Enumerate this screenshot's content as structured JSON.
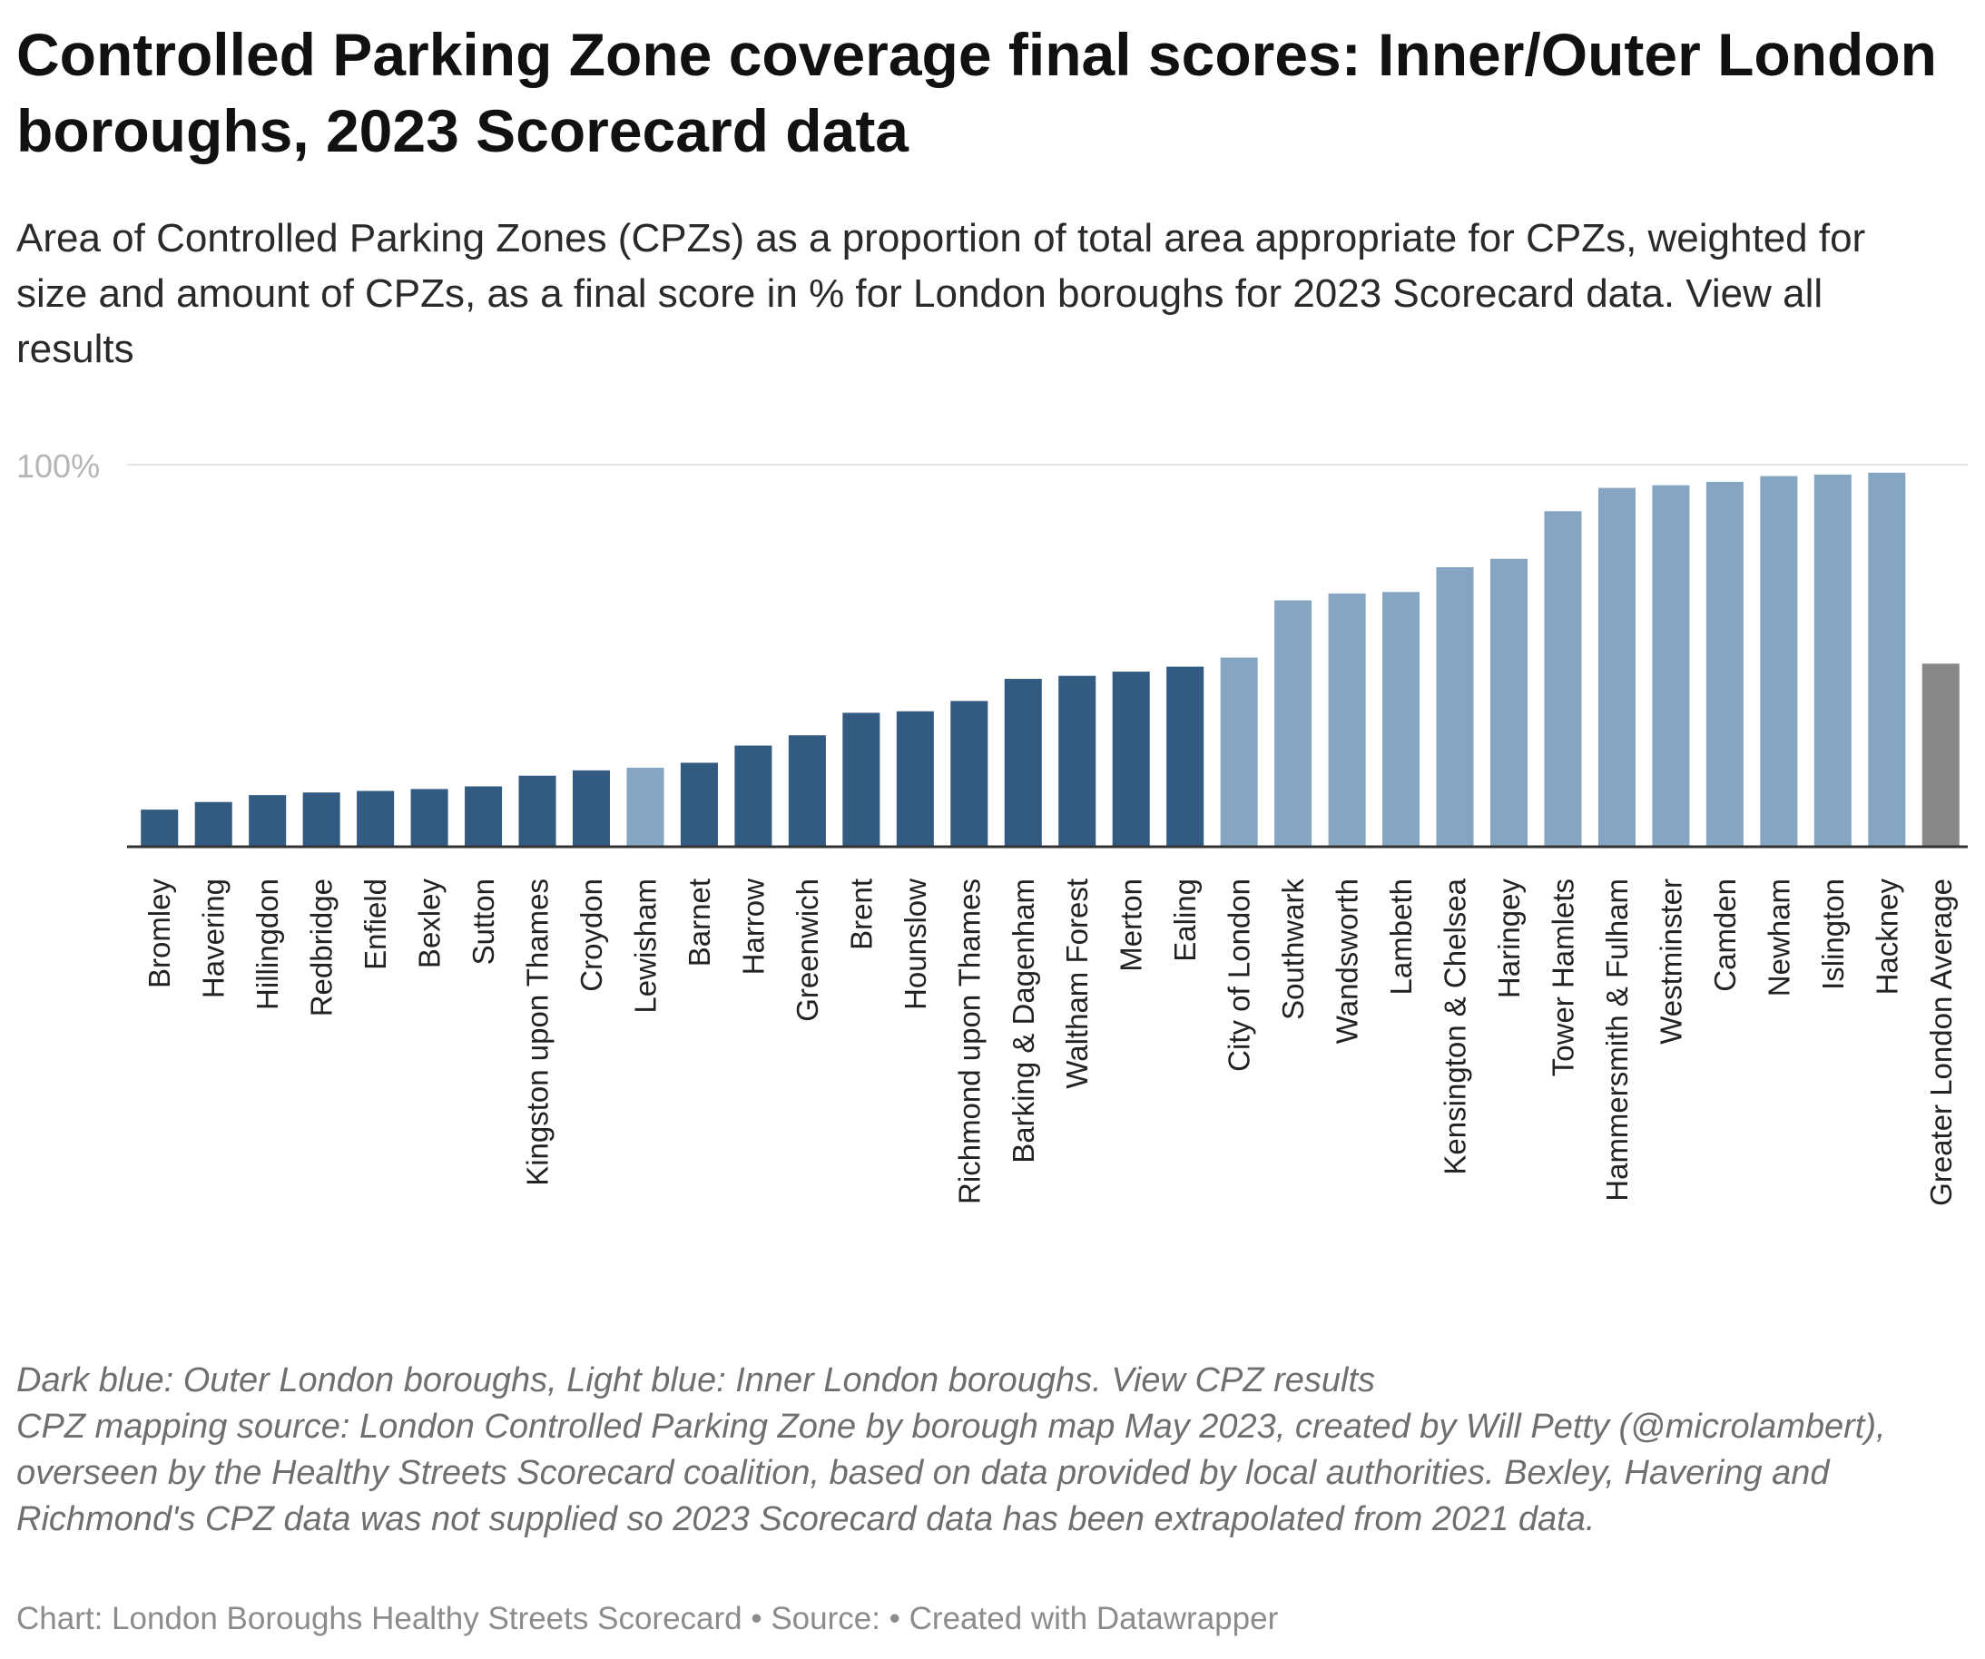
{
  "title": "Controlled Parking Zone coverage final scores: Inner/Outer London boroughs, 2023 Scorecard data",
  "subtitle": "Area of Controlled Parking Zones (CPZs) as a proportion of total area appropriate for CPZs, weighted for size and amount of CPZs, as a final score in % for London boroughs for 2023 Scorecard data.",
  "subtitle_link": "View all results",
  "notes": {
    "line1": "Dark blue: Outer London boroughs, Light blue: Inner London boroughs.",
    "line1_link": "View CPZ results",
    "line2": "CPZ mapping source: London Controlled Parking Zone by borough map May 2023, created by Will Petty (@microlambert), overseen by the Healthy Streets Scorecard coalition, based on data provided by local authorities. Bexley, Havering and Richmond's CPZ data was not supplied so 2023 Scorecard data has been extrapolated from 2021 data."
  },
  "footer": "Chart: London Boroughs Healthy Streets Scorecard • Source: • Created with Datawrapper",
  "colors": {
    "outer": "#335a80",
    "inner": "#86a5c2",
    "average": "#888888",
    "grid": "#e3e3e3",
    "tick": "#b5b5b5",
    "baseline": "#333333"
  },
  "chart_data": {
    "type": "bar",
    "ylim": [
      0,
      100
    ],
    "y_ticks": [
      {
        "value": 100,
        "label": "100%"
      }
    ],
    "grid": true,
    "categories": [
      "Bromley",
      "Havering",
      "Hillingdon",
      "Redbridge",
      "Enfield",
      "Bexley",
      "Sutton",
      "Kingston upon Thames",
      "Croydon",
      "Lewisham",
      "Barnet",
      "Harrow",
      "Greenwich",
      "Brent",
      "Hounslow",
      "Richmond upon Thames",
      "Barking & Dagenham",
      "Waltham Forest",
      "Merton",
      "Ealing",
      "City of London",
      "Southwark",
      "Wandsworth",
      "Lambeth",
      "Kensington & Chelsea",
      "Haringey",
      "Tower Hamlets",
      "Hammersmith & Fulham",
      "Westminster",
      "Camden",
      "Newham",
      "Islington",
      "Hackney",
      "Greater London Average"
    ],
    "values": [
      9.5,
      11.5,
      13.3,
      14.0,
      14.4,
      14.9,
      15.6,
      18.4,
      19.8,
      20.5,
      21.8,
      26.3,
      29.0,
      34.9,
      35.3,
      38.0,
      43.8,
      44.6,
      45.7,
      47.0,
      49.4,
      64.4,
      66.2,
      66.6,
      73.1,
      75.3,
      87.8,
      93.9,
      94.6,
      95.5,
      97.0,
      97.4,
      97.9,
      47.8
    ],
    "groups": [
      "outer",
      "outer",
      "outer",
      "outer",
      "outer",
      "outer",
      "outer",
      "outer",
      "outer",
      "inner",
      "outer",
      "outer",
      "outer",
      "outer",
      "outer",
      "outer",
      "outer",
      "outer",
      "outer",
      "outer",
      "inner",
      "inner",
      "inner",
      "inner",
      "inner",
      "inner",
      "inner",
      "inner",
      "inner",
      "inner",
      "inner",
      "inner",
      "inner",
      "average"
    ]
  }
}
